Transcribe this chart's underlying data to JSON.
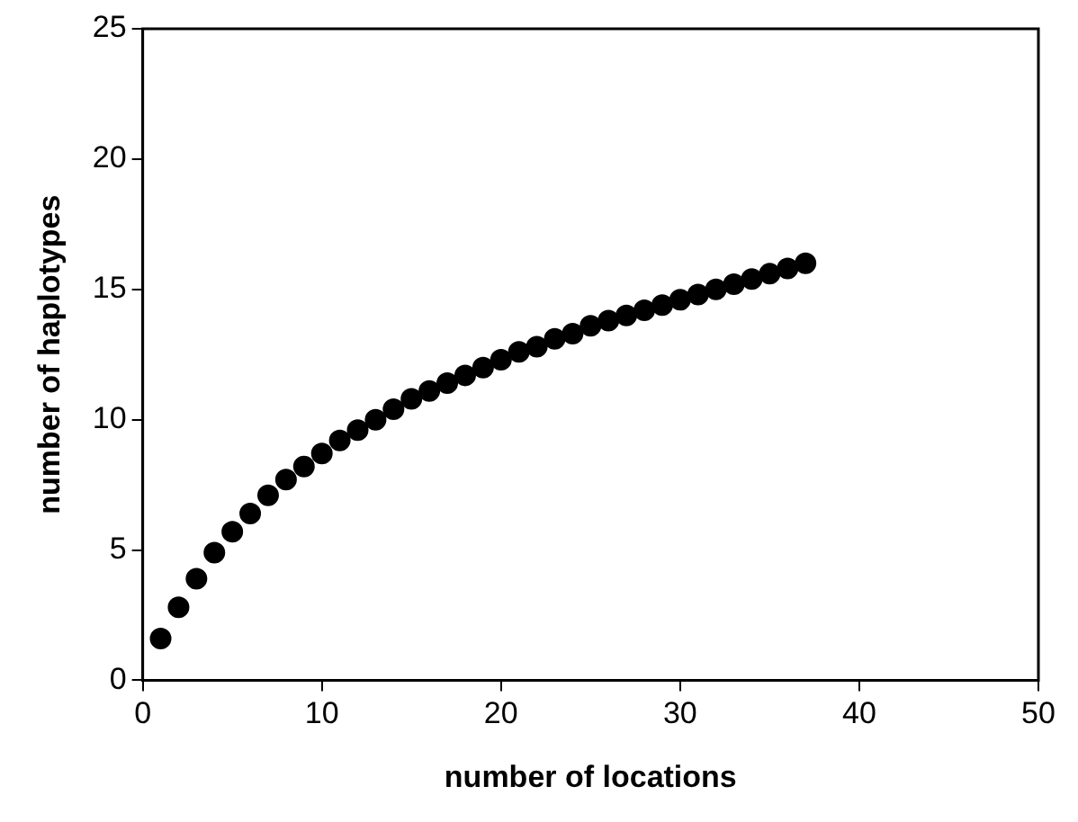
{
  "chart_data": {
    "type": "scatter",
    "xlabel": "number of locations",
    "ylabel": "number of haplotypes",
    "x": [
      1,
      2,
      3,
      4,
      5,
      6,
      7,
      8,
      9,
      10,
      11,
      12,
      13,
      14,
      15,
      16,
      17,
      18,
      19,
      20,
      21,
      22,
      23,
      24,
      25,
      26,
      27,
      28,
      29,
      30,
      31,
      32,
      33,
      34,
      35,
      36,
      37
    ],
    "values": [
      1.6,
      2.8,
      3.9,
      4.9,
      5.7,
      6.4,
      7.1,
      7.7,
      8.2,
      8.7,
      9.2,
      9.6,
      10.0,
      10.4,
      10.8,
      11.1,
      11.4,
      11.7,
      12.0,
      12.3,
      12.6,
      12.8,
      13.1,
      13.3,
      13.6,
      13.8,
      14.0,
      14.2,
      14.4,
      14.6,
      14.8,
      15.0,
      15.2,
      15.4,
      15.6,
      15.8,
      16.0
    ],
    "color": "#000000",
    "marker": "circle",
    "xlim": [
      0,
      50
    ],
    "xticks": [
      0,
      10,
      20,
      30,
      40,
      50
    ],
    "ylim": [
      0,
      25
    ],
    "yticks": [
      0,
      5,
      10,
      15,
      20,
      25
    ],
    "grid": false,
    "legend": false
  }
}
